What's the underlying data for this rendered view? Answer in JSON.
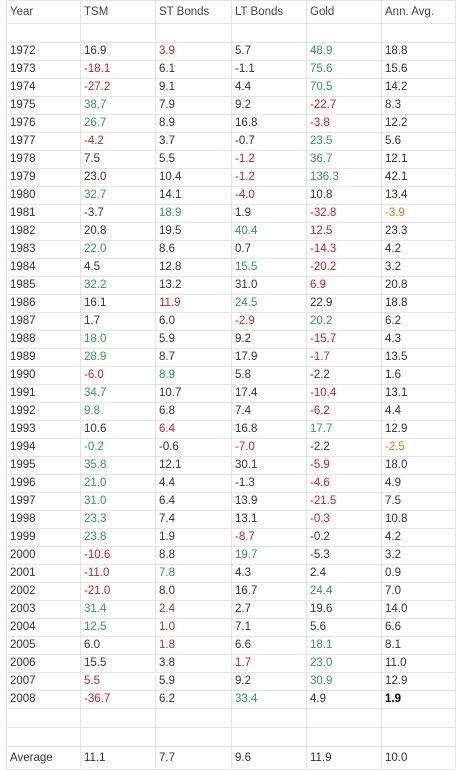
{
  "headers": [
    "Year",
    "TSM",
    "ST Bonds",
    "LT Bonds",
    "Gold",
    "Ann. Avg."
  ],
  "colors": {
    "negative": "#cc1f2a",
    "best": "#2d9b5a",
    "avg_negative": "#e07a10",
    "default": "#333333"
  },
  "rows": [
    {
      "year": "1972",
      "cells": [
        {
          "v": "16.9",
          "s": "plain"
        },
        {
          "v": "3.9",
          "s": "red"
        },
        {
          "v": "5.7",
          "s": "plain"
        },
        {
          "v": "48.9",
          "s": "green"
        },
        {
          "v": "18.8",
          "s": "plain"
        }
      ]
    },
    {
      "year": "1973",
      "cells": [
        {
          "v": "-18.1",
          "s": "red"
        },
        {
          "v": "6.1",
          "s": "plain"
        },
        {
          "v": "-1.1",
          "s": "plain"
        },
        {
          "v": "75.6",
          "s": "green"
        },
        {
          "v": "15.6",
          "s": "plain"
        }
      ]
    },
    {
      "year": "1974",
      "cells": [
        {
          "v": "-27.2",
          "s": "red"
        },
        {
          "v": "9.1",
          "s": "plain"
        },
        {
          "v": "4.4",
          "s": "plain"
        },
        {
          "v": "70.5",
          "s": "green"
        },
        {
          "v": "14.2",
          "s": "plain"
        }
      ]
    },
    {
      "year": "1975",
      "cells": [
        {
          "v": "38.7",
          "s": "green"
        },
        {
          "v": "7.9",
          "s": "plain"
        },
        {
          "v": "9.2",
          "s": "plain"
        },
        {
          "v": "-22.7",
          "s": "red"
        },
        {
          "v": "8.3",
          "s": "plain"
        }
      ]
    },
    {
      "year": "1976",
      "cells": [
        {
          "v": "26.7",
          "s": "green"
        },
        {
          "v": "8.9",
          "s": "plain"
        },
        {
          "v": "16.8",
          "s": "plain"
        },
        {
          "v": "-3.8",
          "s": "red"
        },
        {
          "v": "12.2",
          "s": "plain"
        }
      ]
    },
    {
      "year": "1977",
      "cells": [
        {
          "v": "-4.2",
          "s": "red"
        },
        {
          "v": "3.7",
          "s": "plain"
        },
        {
          "v": "-0.7",
          "s": "plain"
        },
        {
          "v": "23.5",
          "s": "green"
        },
        {
          "v": "5.6",
          "s": "plain"
        }
      ]
    },
    {
      "year": "1978",
      "cells": [
        {
          "v": "7.5",
          "s": "plain"
        },
        {
          "v": "5.5",
          "s": "plain"
        },
        {
          "v": "-1.2",
          "s": "red"
        },
        {
          "v": "36.7",
          "s": "green"
        },
        {
          "v": "12.1",
          "s": "plain"
        }
      ]
    },
    {
      "year": "1979",
      "cells": [
        {
          "v": "23.0",
          "s": "plain"
        },
        {
          "v": "10.4",
          "s": "plain"
        },
        {
          "v": "-1.2",
          "s": "red"
        },
        {
          "v": "136.3",
          "s": "green"
        },
        {
          "v": "42.1",
          "s": "plain"
        }
      ]
    },
    {
      "year": "1980",
      "cells": [
        {
          "v": "32.7",
          "s": "green"
        },
        {
          "v": "14.1",
          "s": "plain"
        },
        {
          "v": "-4.0",
          "s": "red"
        },
        {
          "v": "10.8",
          "s": "plain"
        },
        {
          "v": "13.4",
          "s": "plain"
        }
      ]
    },
    {
      "year": "1981",
      "cells": [
        {
          "v": "-3.7",
          "s": "plain"
        },
        {
          "v": "18.9",
          "s": "green"
        },
        {
          "v": "1.9",
          "s": "plain"
        },
        {
          "v": "-32.8",
          "s": "red"
        },
        {
          "v": "-3.9",
          "s": "orange"
        }
      ]
    },
    {
      "year": "1982",
      "cells": [
        {
          "v": "20.8",
          "s": "plain"
        },
        {
          "v": "19.5",
          "s": "plain"
        },
        {
          "v": "40.4",
          "s": "green"
        },
        {
          "v": "12.5",
          "s": "red"
        },
        {
          "v": "23.3",
          "s": "plain"
        }
      ]
    },
    {
      "year": "1983",
      "cells": [
        {
          "v": "22.0",
          "s": "green"
        },
        {
          "v": "8.6",
          "s": "plain"
        },
        {
          "v": "0.7",
          "s": "plain"
        },
        {
          "v": "-14.3",
          "s": "red"
        },
        {
          "v": "4.2",
          "s": "plain"
        }
      ]
    },
    {
      "year": "1984",
      "cells": [
        {
          "v": "4.5",
          "s": "plain"
        },
        {
          "v": "12.8",
          "s": "plain"
        },
        {
          "v": "15.5",
          "s": "green"
        },
        {
          "v": "-20.2",
          "s": "red"
        },
        {
          "v": "3.2",
          "s": "plain"
        }
      ]
    },
    {
      "year": "1985",
      "cells": [
        {
          "v": "32.2",
          "s": "green"
        },
        {
          "v": "13.2",
          "s": "plain"
        },
        {
          "v": "31.0",
          "s": "plain"
        },
        {
          "v": "6.9",
          "s": "red"
        },
        {
          "v": "20.8",
          "s": "plain"
        }
      ]
    },
    {
      "year": "1986",
      "cells": [
        {
          "v": "16.1",
          "s": "plain"
        },
        {
          "v": "11.9",
          "s": "red"
        },
        {
          "v": "24.5",
          "s": "green"
        },
        {
          "v": "22.9",
          "s": "plain"
        },
        {
          "v": "18.8",
          "s": "plain"
        }
      ]
    },
    {
      "year": "1987",
      "cells": [
        {
          "v": "1.7",
          "s": "plain"
        },
        {
          "v": "6.0",
          "s": "plain"
        },
        {
          "v": "-2.9",
          "s": "red"
        },
        {
          "v": "20.2",
          "s": "green"
        },
        {
          "v": "6.2",
          "s": "plain"
        }
      ]
    },
    {
      "year": "1988",
      "cells": [
        {
          "v": "18.0",
          "s": "green"
        },
        {
          "v": "5.9",
          "s": "plain"
        },
        {
          "v": "9.2",
          "s": "plain"
        },
        {
          "v": "-15.7",
          "s": "red"
        },
        {
          "v": "4.3",
          "s": "plain"
        }
      ]
    },
    {
      "year": "1989",
      "cells": [
        {
          "v": "28.9",
          "s": "green"
        },
        {
          "v": "8.7",
          "s": "plain"
        },
        {
          "v": "17.9",
          "s": "plain"
        },
        {
          "v": "-1.7",
          "s": "red"
        },
        {
          "v": "13.5",
          "s": "plain"
        }
      ]
    },
    {
      "year": "1990",
      "cells": [
        {
          "v": "-6.0",
          "s": "red"
        },
        {
          "v": "8.9",
          "s": "green"
        },
        {
          "v": "5.8",
          "s": "plain"
        },
        {
          "v": "-2.2",
          "s": "plain"
        },
        {
          "v": "1.6",
          "s": "plain"
        }
      ]
    },
    {
      "year": "1991",
      "cells": [
        {
          "v": "34.7",
          "s": "green"
        },
        {
          "v": "10.7",
          "s": "plain"
        },
        {
          "v": "17.4",
          "s": "plain"
        },
        {
          "v": "-10.4",
          "s": "red"
        },
        {
          "v": "13.1",
          "s": "plain"
        }
      ]
    },
    {
      "year": "1992",
      "cells": [
        {
          "v": "9.8",
          "s": "green"
        },
        {
          "v": "6.8",
          "s": "plain"
        },
        {
          "v": "7.4",
          "s": "plain"
        },
        {
          "v": "-6.2",
          "s": "red"
        },
        {
          "v": "4.4",
          "s": "plain"
        }
      ]
    },
    {
      "year": "1993",
      "cells": [
        {
          "v": "10.6",
          "s": "plain"
        },
        {
          "v": "6.4",
          "s": "red"
        },
        {
          "v": "16.8",
          "s": "plain"
        },
        {
          "v": "17.7",
          "s": "green"
        },
        {
          "v": "12.9",
          "s": "plain"
        }
      ]
    },
    {
      "year": "1994",
      "cells": [
        {
          "v": "-0.2",
          "s": "green"
        },
        {
          "v": "-0.6",
          "s": "plain"
        },
        {
          "v": "-7.0",
          "s": "red"
        },
        {
          "v": "-2.2",
          "s": "plain"
        },
        {
          "v": "-2.5",
          "s": "orange"
        }
      ]
    },
    {
      "year": "1995",
      "cells": [
        {
          "v": "35.8",
          "s": "green"
        },
        {
          "v": "12.1",
          "s": "plain"
        },
        {
          "v": "30.1",
          "s": "plain"
        },
        {
          "v": "-5.9",
          "s": "red"
        },
        {
          "v": "18.0",
          "s": "plain"
        }
      ]
    },
    {
      "year": "1996",
      "cells": [
        {
          "v": "21.0",
          "s": "green"
        },
        {
          "v": "4.4",
          "s": "plain"
        },
        {
          "v": "-1.3",
          "s": "plain"
        },
        {
          "v": "-4.6",
          "s": "red"
        },
        {
          "v": "4.9",
          "s": "plain"
        }
      ]
    },
    {
      "year": "1997",
      "cells": [
        {
          "v": "31.0",
          "s": "green"
        },
        {
          "v": "6.4",
          "s": "plain"
        },
        {
          "v": "13.9",
          "s": "plain"
        },
        {
          "v": "-21.5",
          "s": "red"
        },
        {
          "v": "7.5",
          "s": "plain"
        }
      ]
    },
    {
      "year": "1998",
      "cells": [
        {
          "v": "23.3",
          "s": "green"
        },
        {
          "v": "7.4",
          "s": "plain"
        },
        {
          "v": "13.1",
          "s": "plain"
        },
        {
          "v": "-0.3",
          "s": "red"
        },
        {
          "v": "10.8",
          "s": "plain"
        }
      ]
    },
    {
      "year": "1999",
      "cells": [
        {
          "v": "23.8",
          "s": "green"
        },
        {
          "v": "1.9",
          "s": "plain"
        },
        {
          "v": "-8.7",
          "s": "red"
        },
        {
          "v": "-0.2",
          "s": "plain"
        },
        {
          "v": "4.2",
          "s": "plain"
        }
      ]
    },
    {
      "year": "2000",
      "cells": [
        {
          "v": "-10.6",
          "s": "red"
        },
        {
          "v": "8.8",
          "s": "plain"
        },
        {
          "v": "19.7",
          "s": "green"
        },
        {
          "v": "-5.3",
          "s": "plain"
        },
        {
          "v": "3.2",
          "s": "plain"
        }
      ]
    },
    {
      "year": "2001",
      "cells": [
        {
          "v": "-11.0",
          "s": "red"
        },
        {
          "v": "7.8",
          "s": "green"
        },
        {
          "v": "4.3",
          "s": "plain"
        },
        {
          "v": "2.4",
          "s": "plain"
        },
        {
          "v": "0.9",
          "s": "plain"
        }
      ]
    },
    {
      "year": "2002",
      "cells": [
        {
          "v": "-21.0",
          "s": "red"
        },
        {
          "v": "8.0",
          "s": "plain"
        },
        {
          "v": "16.7",
          "s": "plain"
        },
        {
          "v": "24.4",
          "s": "green"
        },
        {
          "v": "7.0",
          "s": "plain"
        }
      ]
    },
    {
      "year": "2003",
      "cells": [
        {
          "v": "31.4",
          "s": "green"
        },
        {
          "v": "2.4",
          "s": "red"
        },
        {
          "v": "2.7",
          "s": "plain"
        },
        {
          "v": "19.6",
          "s": "plain"
        },
        {
          "v": "14.0",
          "s": "plain"
        }
      ]
    },
    {
      "year": "2004",
      "cells": [
        {
          "v": "12.5",
          "s": "green"
        },
        {
          "v": "1.0",
          "s": "red"
        },
        {
          "v": "7.1",
          "s": "plain"
        },
        {
          "v": "5.6",
          "s": "plain"
        },
        {
          "v": "6.6",
          "s": "plain"
        }
      ]
    },
    {
      "year": "2005",
      "cells": [
        {
          "v": "6.0",
          "s": "plain"
        },
        {
          "v": "1.8",
          "s": "red"
        },
        {
          "v": "6.6",
          "s": "plain"
        },
        {
          "v": "18.1",
          "s": "green"
        },
        {
          "v": "8.1",
          "s": "plain"
        }
      ]
    },
    {
      "year": "2006",
      "cells": [
        {
          "v": "15.5",
          "s": "plain"
        },
        {
          "v": "3.8",
          "s": "plain"
        },
        {
          "v": "1.7",
          "s": "red"
        },
        {
          "v": "23.0",
          "s": "green"
        },
        {
          "v": "11.0",
          "s": "plain"
        }
      ]
    },
    {
      "year": "2007",
      "cells": [
        {
          "v": "5.5",
          "s": "red"
        },
        {
          "v": "5.9",
          "s": "plain"
        },
        {
          "v": "9.2",
          "s": "plain"
        },
        {
          "v": "30.9",
          "s": "green"
        },
        {
          "v": "12.9",
          "s": "plain"
        }
      ]
    },
    {
      "year": "2008",
      "cells": [
        {
          "v": "-36.7",
          "s": "red"
        },
        {
          "v": "6.2",
          "s": "plain"
        },
        {
          "v": "33.4",
          "s": "green"
        },
        {
          "v": "4.9",
          "s": "plain"
        },
        {
          "v": "1.9",
          "s": "bold"
        }
      ]
    }
  ],
  "average": {
    "label": "Average",
    "values": [
      "11.1",
      "7.7",
      "9.6",
      "11.9",
      "10.0"
    ]
  }
}
